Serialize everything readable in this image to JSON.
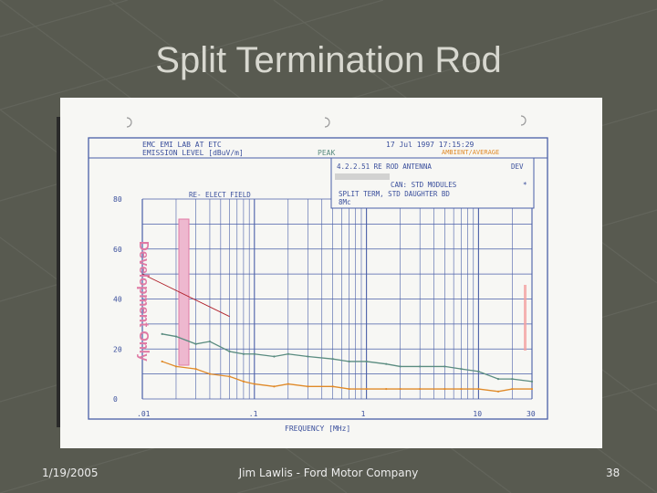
{
  "slide": {
    "title": "Split Termination Rod",
    "footer_date": "1/19/2005",
    "footer_center": "Jim Lawlis - Ford Motor Company",
    "page_number": "38"
  },
  "plot": {
    "header_line1": "EMC EMI LAB AT ETC",
    "header_line2": "EMISSION LEVEL [dBuV/m]",
    "peak_label": "PEAK",
    "date_time": "17 Jul 1997    17:15:29",
    "mode_label": "AMBIENT/AVERAGE",
    "info_line1": "4.2.2.51 RE ROD ANTENNA",
    "info_dev": "DEV",
    "info_line2": "CAN: STD MODULES",
    "info_star": "*",
    "info_line3": "SPLIT TERM, STD DAUGHTER BD",
    "info_line4": "8Mc",
    "field_label": "RE- ELECT FIELD",
    "watermark": "Development Only",
    "xlabel": "FREQUENCY [MHz]"
  },
  "chart_data": {
    "type": "line",
    "title": "EMISSION LEVEL [dBuV/m]",
    "xlabel": "FREQUENCY [MHz]",
    "ylabel": "EMISSION LEVEL [dBuV/m]",
    "xscale": "log",
    "xlim": [
      0.01,
      30
    ],
    "ylim": [
      0,
      80
    ],
    "x_ticks": [
      ".01",
      ".1",
      "1",
      "10",
      "30"
    ],
    "y_ticks": [
      "0",
      "20",
      "40",
      "60",
      "80"
    ],
    "limit_line": {
      "x": [
        0.01,
        0.06
      ],
      "y": [
        50,
        33
      ]
    },
    "series": [
      {
        "name": "PEAK",
        "color": "#5a8c80",
        "x": [
          0.015,
          0.02,
          0.03,
          0.04,
          0.06,
          0.08,
          0.1,
          0.15,
          0.2,
          0.3,
          0.5,
          0.7,
          1,
          1.5,
          2,
          3,
          5,
          7,
          10,
          15,
          20,
          30
        ],
        "y": [
          26,
          25,
          22,
          23,
          19,
          18,
          18,
          17,
          18,
          17,
          16,
          15,
          15,
          14,
          13,
          13,
          13,
          12,
          11,
          8,
          8,
          7
        ]
      },
      {
        "name": "AMBIENT/AVERAGE",
        "color": "#e08a28",
        "x": [
          0.015,
          0.02,
          0.03,
          0.04,
          0.06,
          0.08,
          0.1,
          0.15,
          0.2,
          0.3,
          0.5,
          0.7,
          1,
          1.5,
          2,
          3,
          5,
          7,
          10,
          15,
          20,
          30
        ],
        "y": [
          15,
          13,
          12,
          10,
          9,
          7,
          6,
          5,
          6,
          5,
          5,
          4,
          4,
          4,
          4,
          4,
          4,
          4,
          4,
          3,
          4,
          4
        ]
      }
    ]
  }
}
